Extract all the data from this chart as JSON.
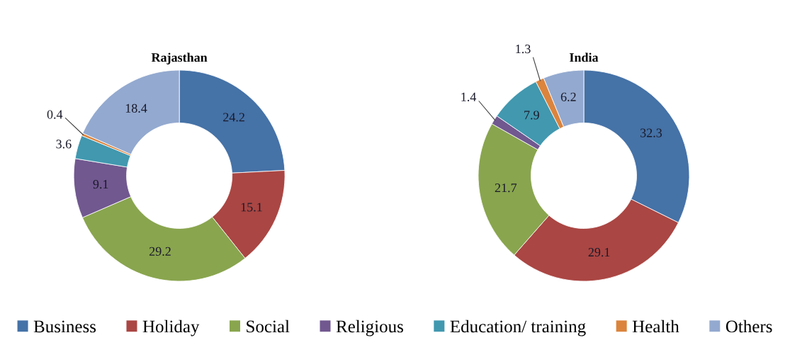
{
  "chart_data": [
    {
      "type": "donut",
      "title": "Rajasthan",
      "categories": [
        "Business",
        "Holiday",
        "Social",
        "Religious",
        "Education/ training",
        "Health",
        "Others"
      ],
      "values": [
        24.2,
        15.1,
        29.2,
        9.1,
        3.6,
        0.4,
        18.4
      ],
      "colors": [
        "#4572a7",
        "#aa4643",
        "#89a54e",
        "#71588f",
        "#4198af",
        "#db843d",
        "#93a9cf"
      ],
      "data_labels": true,
      "legend": "bottom"
    },
    {
      "type": "donut",
      "title": "India",
      "categories": [
        null,
        null,
        null,
        null,
        null,
        null,
        null
      ],
      "values": [
        32.3,
        29.1,
        21.7,
        1.4,
        7.9,
        1.3,
        6.2
      ],
      "colors": [
        "#4572a7",
        "#aa4643",
        "#89a54e",
        "#71588f",
        "#4198af",
        "#db843d",
        "#93a9cf"
      ],
      "data_labels": true
    }
  ]
}
